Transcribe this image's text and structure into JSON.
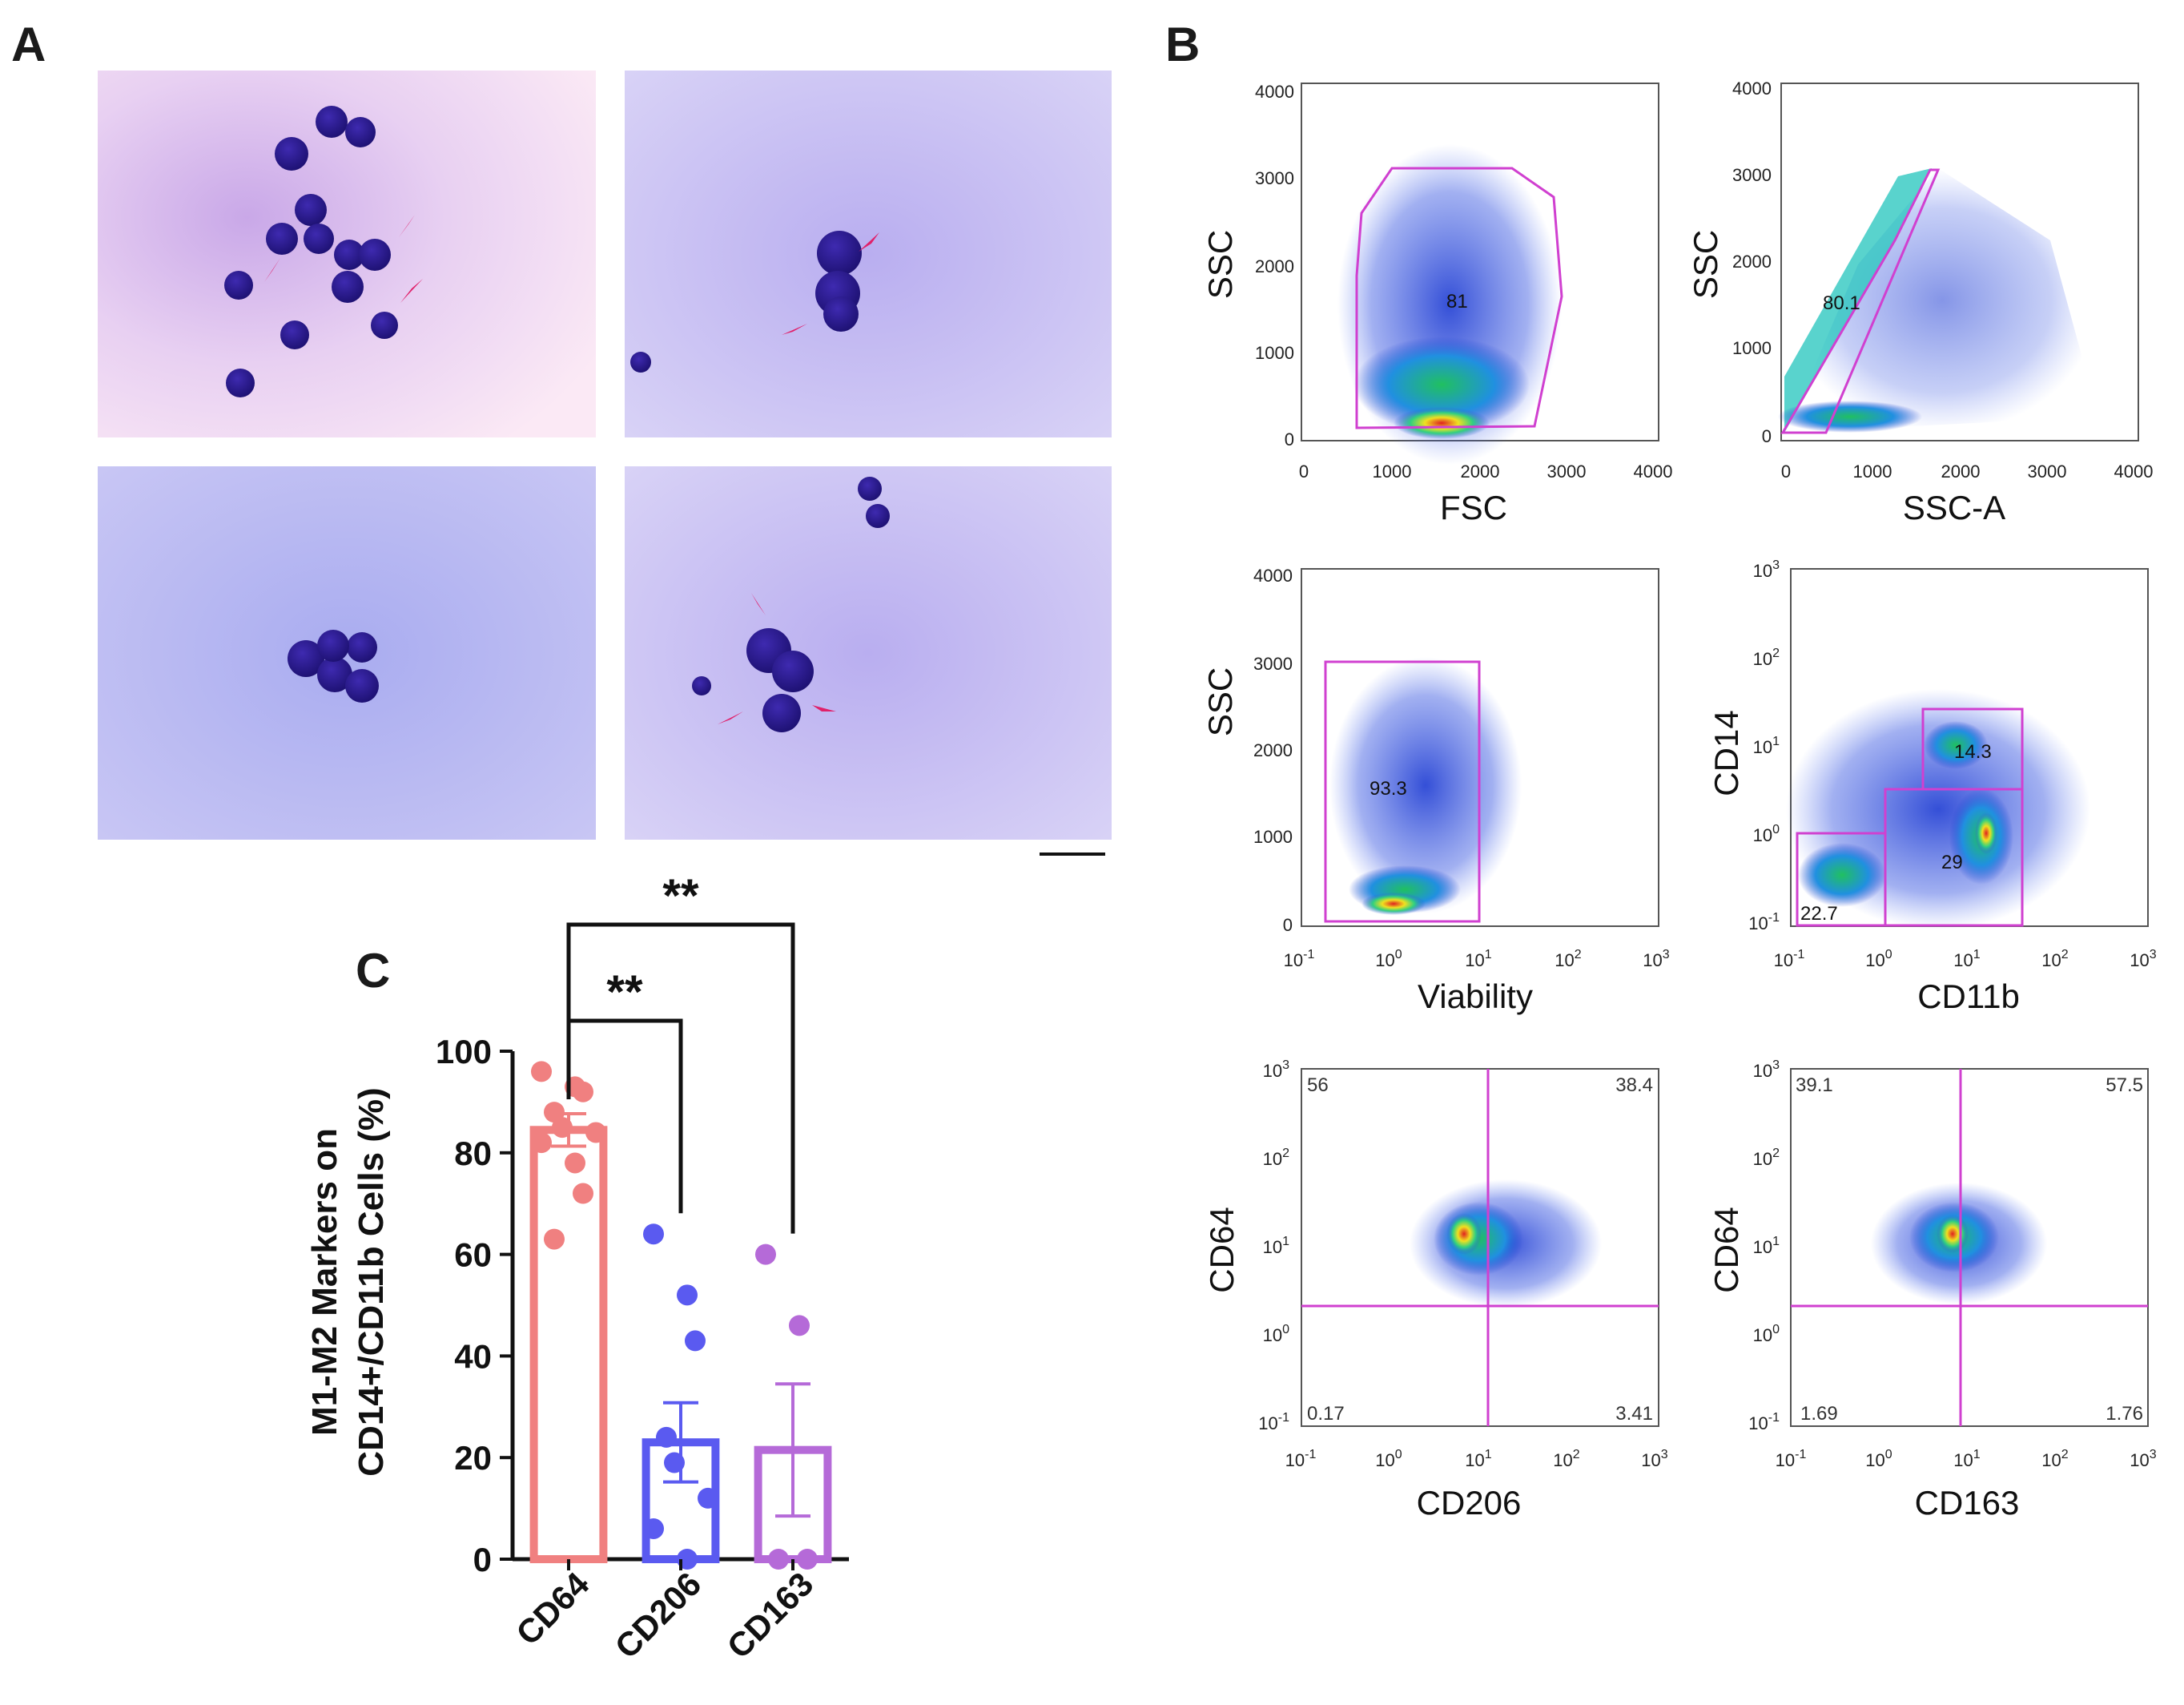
{
  "panels": {
    "a_label": "A",
    "b_label": "B",
    "c_label": "C"
  },
  "flow": {
    "p1": {
      "ylabel": "SSC",
      "xlabel": "FSC",
      "gate_value": "81",
      "x_ticks": [
        "0",
        "1000",
        "2000",
        "3000",
        "4000"
      ],
      "y_ticks": [
        "0",
        "1000",
        "2000",
        "3000",
        "4000"
      ]
    },
    "p2": {
      "ylabel": "SSC",
      "xlabel": "SSC-A",
      "gate_value": "80.1",
      "x_ticks": [
        "0",
        "1000",
        "2000",
        "3000",
        "4000"
      ],
      "y_ticks": [
        "0",
        "1000",
        "2000",
        "3000",
        "4000"
      ]
    },
    "p3": {
      "ylabel": "SSC",
      "xlabel": "Viability",
      "gate_value": "93.3",
      "y_ticks": [
        "0",
        "1000",
        "2000",
        "3000",
        "4000"
      ]
    },
    "p4": {
      "ylabel": "CD14",
      "xlabel": "CD11b",
      "gate_values": [
        "14.3",
        "29",
        "22.7"
      ]
    },
    "p5": {
      "ylabel": "CD64",
      "xlabel": "CD206",
      "quadrants": {
        "ul": "56",
        "ur": "38.4",
        "ll": "0.17",
        "lr": "3.41"
      }
    },
    "p6": {
      "ylabel": "CD64",
      "xlabel": "CD163",
      "quadrants": {
        "ul": "39.1",
        "ur": "57.5",
        "ll": "1.69",
        "lr": "1.76"
      }
    },
    "log_ticks": {
      "x": [
        {
          "b": "10",
          "e": "-1"
        },
        {
          "b": "10",
          "e": "0"
        },
        {
          "b": "10",
          "e": "1"
        },
        {
          "b": "10",
          "e": "2"
        },
        {
          "b": "10",
          "e": "3"
        }
      ],
      "y": [
        {
          "b": "10",
          "e": "-1"
        },
        {
          "b": "10",
          "e": "0"
        },
        {
          "b": "10",
          "e": "1"
        },
        {
          "b": "10",
          "e": "2"
        },
        {
          "b": "10",
          "e": "3"
        }
      ]
    }
  },
  "chart_data": {
    "type": "bar",
    "title": "",
    "ylabel_line1": "M1-M2 Markers on",
    "ylabel_line2": "CD14+/CD11b Cells (%)",
    "ylim": [
      0,
      100
    ],
    "y_ticks": [
      "0",
      "20",
      "40",
      "60",
      "80",
      "100"
    ],
    "categories": [
      "CD64",
      "CD206",
      "CD163"
    ],
    "values": [
      84.5,
      23,
      21.5
    ],
    "sem": [
      3.2,
      7.8,
      13
    ],
    "colors": [
      "#f08080",
      "#5a5af0",
      "#b56ad8"
    ],
    "points": [
      [
        96,
        93,
        92,
        88,
        85,
        84,
        82,
        78,
        72,
        63
      ],
      [
        64,
        52,
        43,
        24,
        19,
        12,
        6,
        0
      ],
      [
        60,
        46,
        0,
        0
      ]
    ],
    "significance": [
      {
        "from": "CD64",
        "to": "CD206",
        "label": "**"
      },
      {
        "from": "CD64",
        "to": "CD163",
        "label": "**"
      }
    ]
  }
}
